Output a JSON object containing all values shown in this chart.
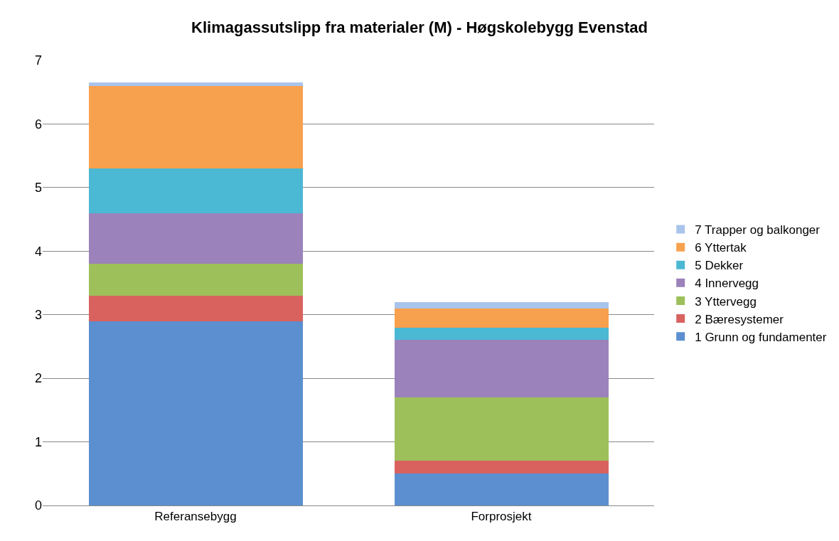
{
  "chart_data": {
    "type": "bar",
    "title": "Klimagassutslipp fra materialer (M) - Høgskolebygg Evenstad",
    "categories": [
      "Referansebygg",
      "Forprosjekt"
    ],
    "stacked": true,
    "series": [
      {
        "name": "1 Grunn og fundamenter",
        "color": "#5b8fd0",
        "values": [
          2.9,
          0.5
        ]
      },
      {
        "name": "2 Bæresystemer",
        "color": "#d9625f",
        "values": [
          0.4,
          0.2
        ]
      },
      {
        "name": "3 Yttervegg",
        "color": "#9dc05a",
        "values": [
          0.5,
          1.0
        ]
      },
      {
        "name": "4 Innervegg",
        "color": "#9b82bb",
        "values": [
          0.8,
          0.9
        ]
      },
      {
        "name": "5 Dekker",
        "color": "#4bb8d4",
        "values": [
          0.7,
          0.2
        ]
      },
      {
        "name": "6 Yttertak",
        "color": "#f7a04d",
        "values": [
          1.3,
          0.3
        ]
      },
      {
        "name": "7 Trapper og balkonger",
        "color": "#a9c4eb",
        "values": [
          0.05,
          0.1
        ]
      }
    ],
    "ylim": [
      0,
      7
    ],
    "yticks": [
      0,
      1,
      2,
      3,
      4,
      5,
      6,
      7
    ],
    "grid": "y",
    "legend": "right"
  }
}
